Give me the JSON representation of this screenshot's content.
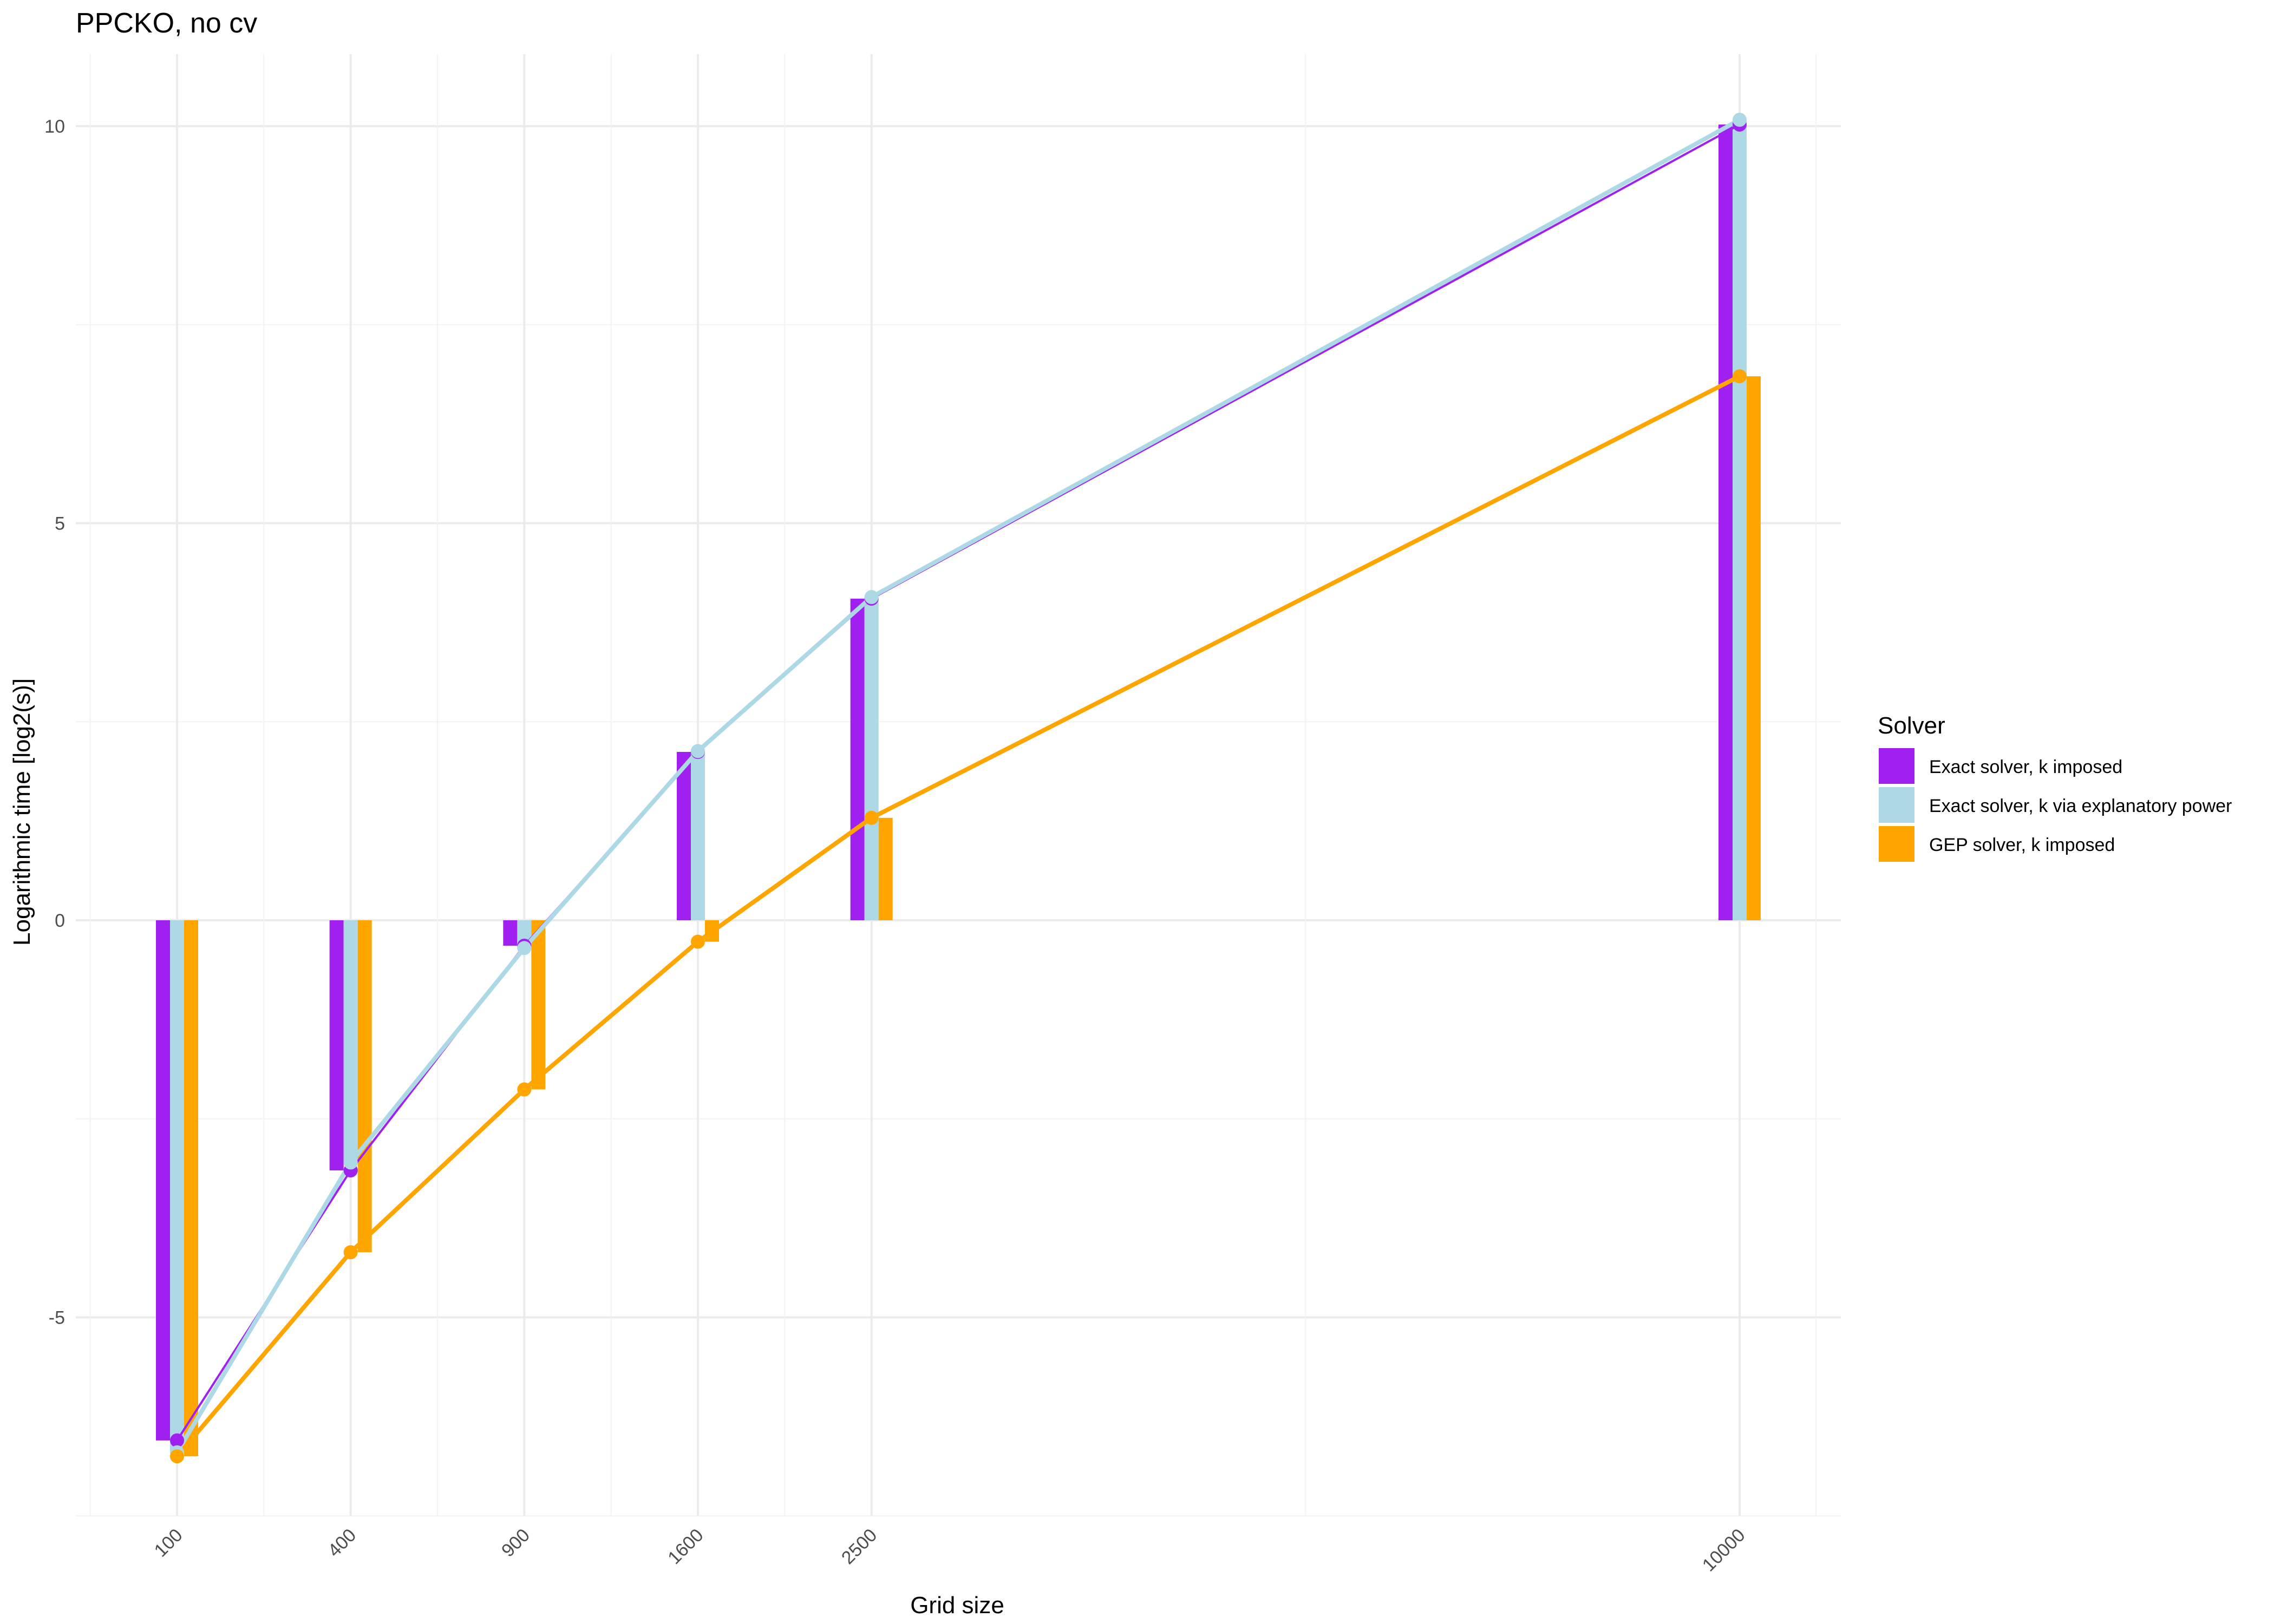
{
  "chart_data": {
    "type": "bar",
    "title": "PPCKO, no cv",
    "xlabel": "Grid size",
    "ylabel": "Logarithmic time [log2(s)]",
    "x_scale": "sqrt",
    "x": [
      100,
      400,
      900,
      1600,
      2500,
      10000
    ],
    "x_tick_labels": [
      "100",
      "400",
      "900",
      "1600",
      "2500",
      "10000"
    ],
    "y_ticks": [
      -5,
      0,
      5,
      10
    ],
    "y_tick_labels": [
      "-5",
      "0",
      "5",
      "10"
    ],
    "ylim": [
      -7.5,
      10.9
    ],
    "grid": true,
    "legend": {
      "title": "Solver",
      "position": "right"
    },
    "series": [
      {
        "name": "Exact solver, k imposed",
        "color": "#a020f0",
        "values": [
          -6.55,
          -3.15,
          -0.32,
          2.12,
          4.05,
          10.02
        ],
        "style": "bar+line+points"
      },
      {
        "name": "Exact solver, k via explanatory power",
        "color": "#add8e6",
        "values": [
          -6.7,
          -3.05,
          -0.35,
          2.13,
          4.07,
          10.08
        ],
        "style": "bar+line+points"
      },
      {
        "name": "GEP solver, k imposed",
        "color": "#ffa500",
        "values": [
          -6.75,
          -4.18,
          -2.13,
          -0.27,
          1.29,
          6.85
        ],
        "style": "bar+line+points"
      }
    ]
  }
}
